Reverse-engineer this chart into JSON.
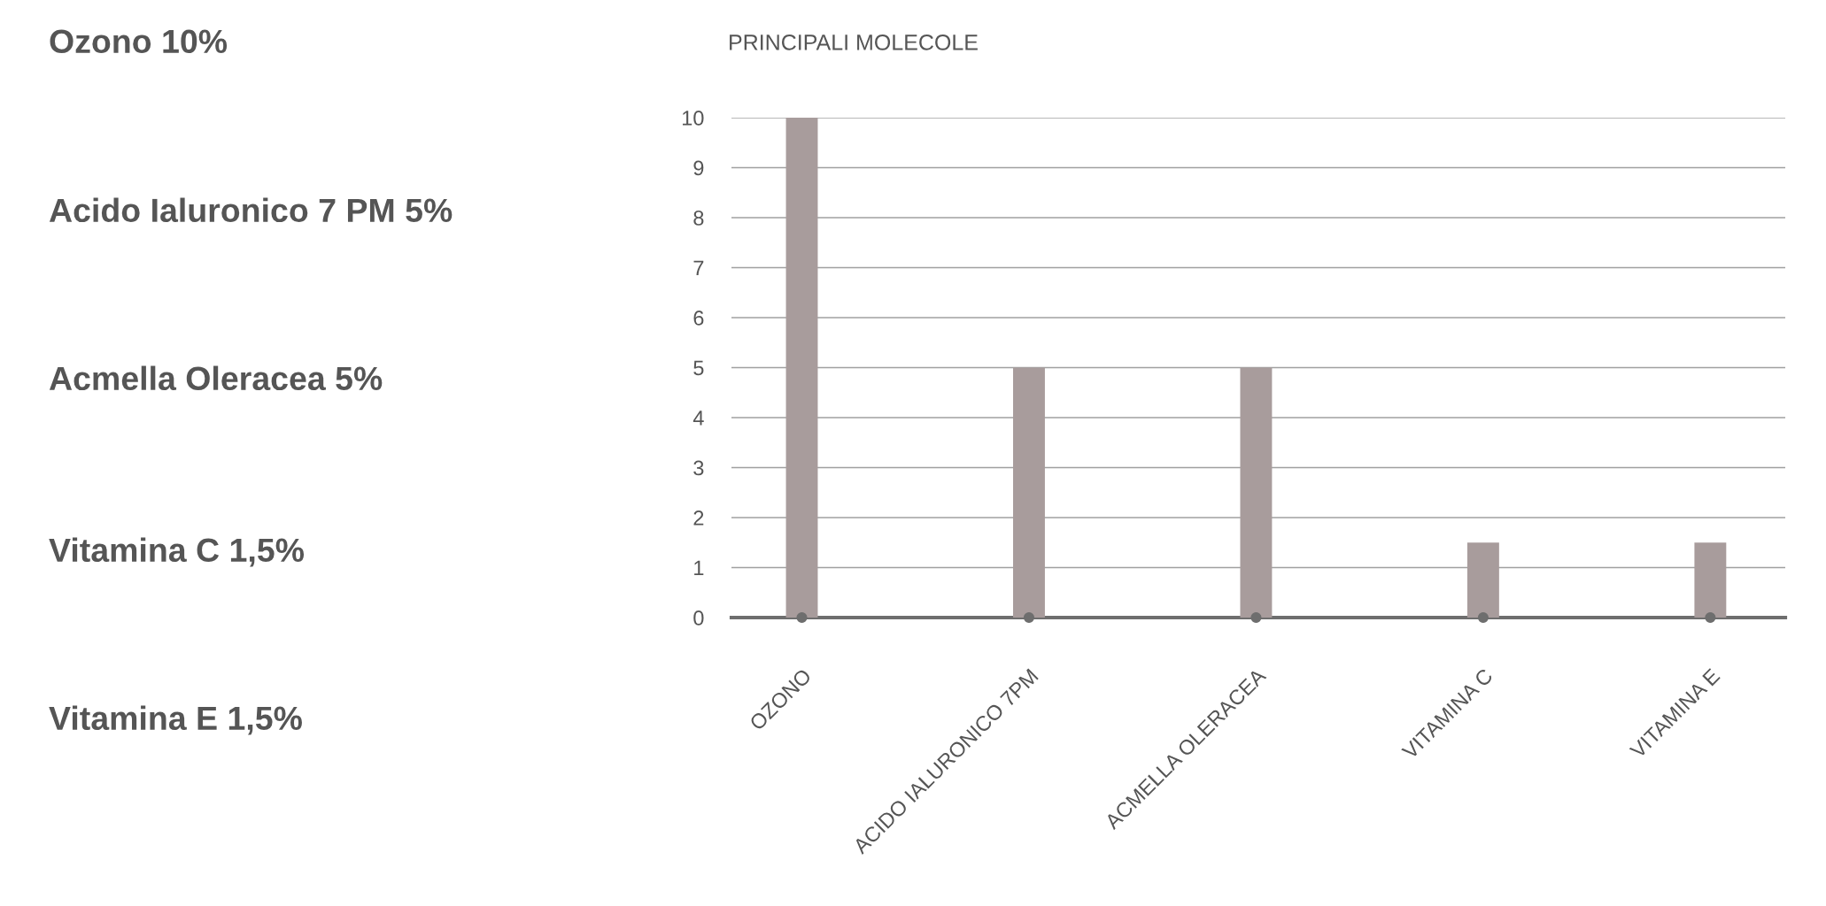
{
  "chart_data": {
    "type": "bar",
    "title": "PRINCIPALI MOLECOLE",
    "categories": [
      "OZONO",
      "ACIDO IALURONICO 7PM",
      "ACMELLA OLERACEA",
      "VITAMINA C",
      "VITAMINA E"
    ],
    "series": [
      {
        "color": "#a89c9c",
        "values": [
          10,
          5,
          5,
          1.5,
          1.5
        ]
      },
      {
        "type": "scatter",
        "color": "#6e6e6e",
        "values": [
          0,
          0,
          0,
          0,
          0
        ]
      }
    ],
    "ylim": [
      0,
      10
    ],
    "yticks": [
      0,
      1,
      2,
      3,
      4,
      5,
      6,
      7,
      8,
      9,
      10
    ],
    "grid": "y",
    "marker": "circle",
    "annotations": [
      "Ozono 10%",
      "Acido Ialuronico 7 PM 5%",
      "Acmella Oleracea 5%",
      "Vitamina C 1,5%",
      "Vitamina E 1,5%"
    ]
  }
}
